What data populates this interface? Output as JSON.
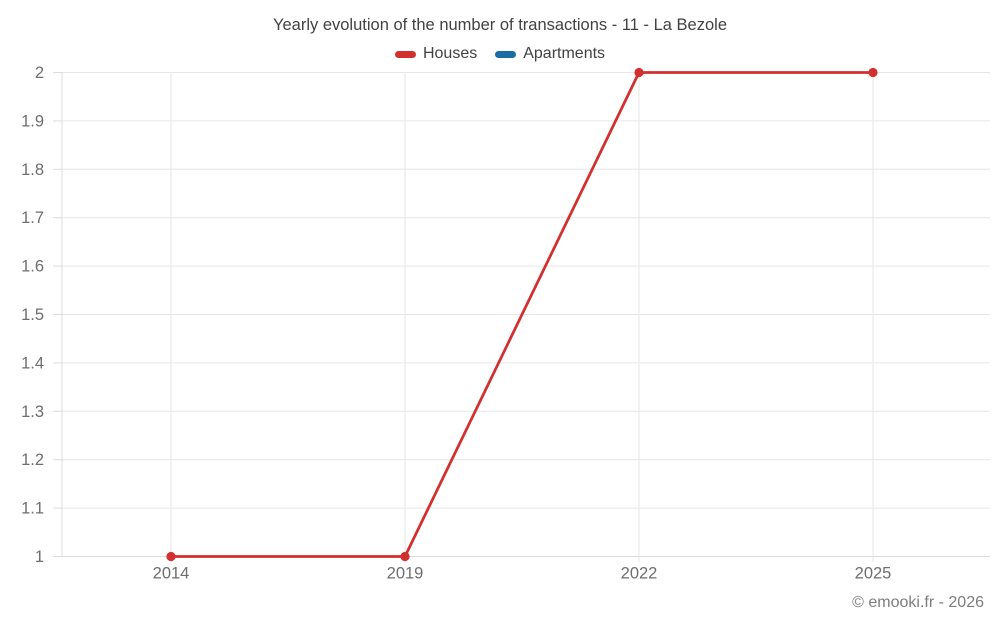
{
  "footer": {
    "copyright": "© emooki.fr - 2026"
  },
  "chart_data": {
    "type": "line",
    "title": "Yearly evolution of the number of transactions - 11 - La Bezole",
    "categories": [
      "2014",
      "2019",
      "2022",
      "2025"
    ],
    "series": [
      {
        "name": "Houses",
        "color": "#d32f2f",
        "values": [
          1,
          1,
          2,
          2
        ]
      },
      {
        "name": "Apartments",
        "color": "#1a6da4",
        "values": []
      }
    ],
    "ylim": [
      1,
      2
    ],
    "ytick_step": 0.1,
    "ytick_labels": [
      "1",
      "1.1",
      "1.2",
      "1.3",
      "1.4",
      "1.5",
      "1.6",
      "1.7",
      "1.8",
      "1.9",
      "2"
    ],
    "grid": true,
    "legend_position": "top",
    "xlabel": "",
    "ylabel": "",
    "grid_color": "#e6e6e6",
    "axis_color": "#dcdcdc",
    "tick_label_color": "#6e6e6e"
  }
}
